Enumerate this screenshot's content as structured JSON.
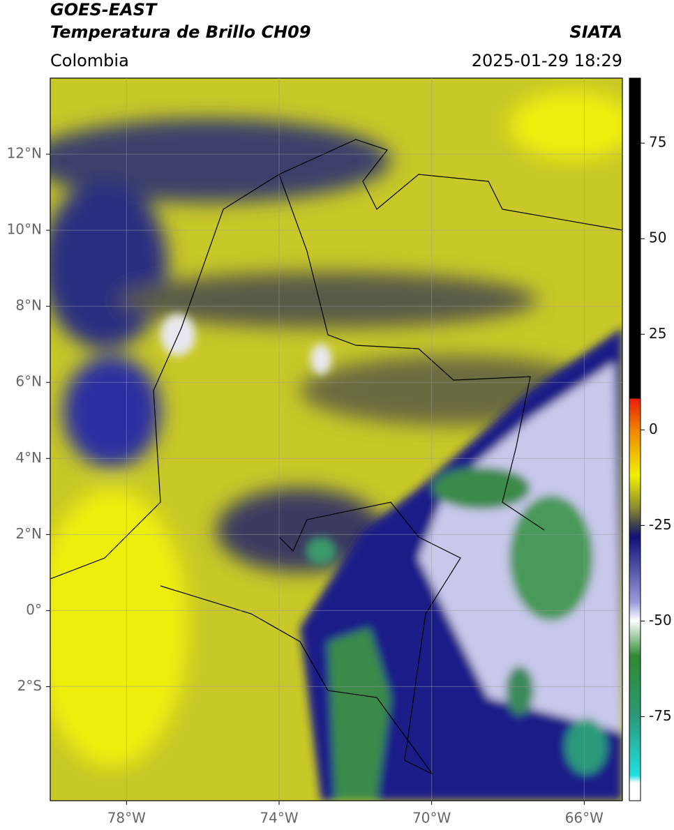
{
  "header": {
    "title_1": "GOES-EAST",
    "title_2": "Temperatura de Brillo CH09",
    "source": "SIATA",
    "region": "Colombia",
    "datetime": "2025-01-29 18:29"
  },
  "map": {
    "xlim": [
      -80,
      -65
    ],
    "ylim": [
      -5,
      14
    ],
    "grid": true,
    "xticks": [
      {
        "value": -78,
        "label": "78°W"
      },
      {
        "value": -74,
        "label": "74°W"
      },
      {
        "value": -70,
        "label": "70°W"
      },
      {
        "value": -66,
        "label": "66°W"
      }
    ],
    "yticks": [
      {
        "value": -2,
        "label": "2°S"
      },
      {
        "value": 0,
        "label": "0°"
      },
      {
        "value": 2,
        "label": "2°N"
      },
      {
        "value": 4,
        "label": "4°N"
      },
      {
        "value": 6,
        "label": "6°N"
      },
      {
        "value": 8,
        "label": "8°N"
      },
      {
        "value": 10,
        "label": "10°N"
      },
      {
        "value": 12,
        "label": "12°N"
      }
    ]
  },
  "colorbar": {
    "lim": [
      -97,
      92
    ],
    "ticks": [
      -75,
      -50,
      -25,
      0,
      25,
      50,
      75
    ]
  }
}
